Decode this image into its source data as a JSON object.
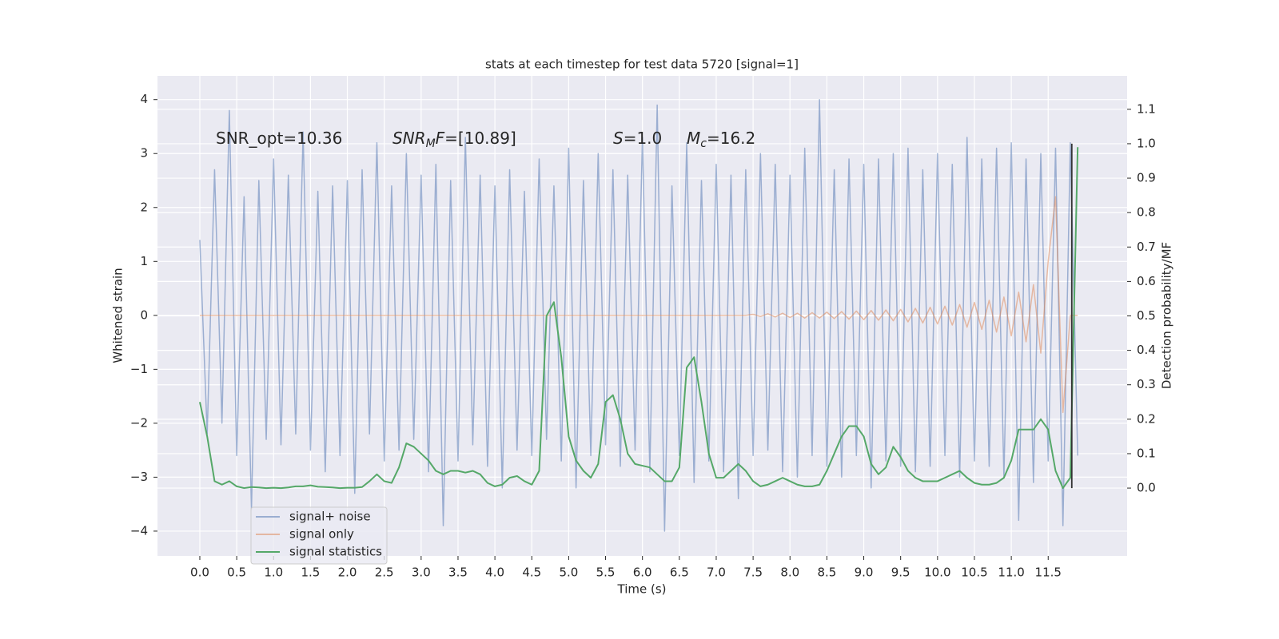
{
  "chart_data": {
    "type": "line",
    "title": "stats at each timestep for test data 5720 [signal=1]",
    "xlabel": "Time (s)",
    "ylabel": "Whitened strain",
    "y2label": "Detection probability/MF",
    "x": [
      0,
      0.1,
      0.2,
      0.3,
      0.4,
      0.5,
      0.6,
      0.7,
      0.8,
      0.9,
      1,
      1.1,
      1.2,
      1.3,
      1.4,
      1.5,
      1.6,
      1.7,
      1.8,
      1.9,
      2,
      2.1,
      2.2,
      2.3,
      2.4,
      2.5,
      2.6,
      2.7,
      2.8,
      2.9,
      3,
      3.1,
      3.2,
      3.3,
      3.4,
      3.5,
      3.6,
      3.7,
      3.8,
      3.9,
      4,
      4.1,
      4.2,
      4.3,
      4.4,
      4.5,
      4.6,
      4.7,
      4.8,
      4.9,
      5,
      5.1,
      5.2,
      5.3,
      5.4,
      5.5,
      5.6,
      5.7,
      5.8,
      5.9,
      6,
      6.1,
      6.2,
      6.3,
      6.4,
      6.5,
      6.6,
      6.7,
      6.8,
      6.9,
      7,
      7.1,
      7.2,
      7.3,
      7.4,
      7.5,
      7.6,
      7.7,
      7.8,
      7.9,
      8,
      8.1,
      8.2,
      8.3,
      8.4,
      8.5,
      8.6,
      8.7,
      8.8,
      8.9,
      9,
      9.1,
      9.2,
      9.3,
      9.4,
      9.5,
      9.6,
      9.7,
      9.8,
      9.9,
      10,
      10.1,
      10.2,
      10.3,
      10.4,
      10.5,
      10.6,
      10.7,
      10.8,
      10.9,
      11,
      11.1,
      11.2,
      11.3,
      11.4,
      11.5,
      11.6,
      11.7,
      11.8,
      11.9
    ],
    "series": [
      {
        "name": "signal+ noise",
        "color": "#4c72b0",
        "opacity": 0.5,
        "axis": "y",
        "values": [
          1.4,
          -2.2,
          2.7,
          -2.0,
          3.8,
          -2.6,
          2.2,
          -3.6,
          2.5,
          -2.3,
          2.9,
          -2.4,
          2.6,
          -2.2,
          3.4,
          -2.5,
          2.3,
          -2.9,
          2.4,
          -2.6,
          2.5,
          -3.3,
          2.7,
          -2.2,
          3.2,
          -2.7,
          2.4,
          -2.5,
          3.0,
          -2.3,
          2.6,
          -2.9,
          2.8,
          -3.9,
          2.5,
          -2.7,
          3.3,
          -2.4,
          2.6,
          -2.8,
          2.4,
          -3.2,
          2.7,
          -2.5,
          2.3,
          -2.6,
          2.9,
          -2.3,
          2.4,
          -2.7,
          3.1,
          -3.2,
          2.5,
          -2.6,
          3.0,
          -2.4,
          2.7,
          -2.8,
          2.6,
          -2.5,
          3.3,
          -2.9,
          3.9,
          -4.0,
          2.4,
          -2.6,
          3.2,
          -3.1,
          2.5,
          -2.7,
          2.8,
          -2.9,
          2.6,
          -3.4,
          2.7,
          -2.6,
          3.0,
          -2.5,
          2.8,
          -2.9,
          2.6,
          -3.0,
          3.1,
          -2.6,
          4.0,
          -2.8,
          2.7,
          -3.0,
          2.9,
          -2.6,
          2.8,
          -3.2,
          2.9,
          -2.7,
          3.0,
          -2.8,
          3.1,
          -2.9,
          2.7,
          -2.8,
          3.0,
          -2.6,
          2.8,
          -3.0,
          3.3,
          -2.7,
          2.9,
          -2.8,
          3.1,
          -3.0,
          3.2,
          -3.8,
          2.9,
          -3.1,
          3.0,
          -2.7,
          3.1,
          -3.9,
          3.2,
          -2.6
        ]
      },
      {
        "name": "signal only",
        "color": "#dd8452",
        "opacity": 0.5,
        "axis": "y",
        "values": [
          0,
          0,
          0,
          0,
          0,
          0,
          0,
          0,
          0,
          0,
          0,
          0,
          0,
          0,
          0,
          0,
          0,
          0,
          0,
          0,
          0,
          0,
          0,
          0,
          0,
          0,
          0,
          0,
          0,
          0,
          0,
          0,
          0,
          0,
          0,
          0,
          0,
          0,
          0,
          0,
          0,
          0,
          0,
          0,
          0,
          0,
          0,
          0,
          0,
          0,
          0,
          0,
          0,
          0,
          0,
          0,
          0,
          0,
          0,
          0,
          0,
          0,
          0,
          0,
          0,
          0,
          0,
          0,
          0,
          0,
          0,
          0,
          0,
          0,
          0,
          0.02,
          -0.02,
          0.03,
          -0.03,
          0.04,
          -0.04,
          0.04,
          -0.05,
          0.05,
          -0.05,
          0.06,
          -0.06,
          0.07,
          -0.07,
          0.08,
          -0.08,
          0.09,
          -0.09,
          0.1,
          -0.1,
          0.11,
          -0.12,
          0.13,
          -0.14,
          0.15,
          -0.16,
          0.17,
          -0.18,
          0.2,
          -0.22,
          0.24,
          -0.26,
          0.28,
          -0.31,
          0.34,
          -0.38,
          0.43,
          -0.49,
          0.57,
          -0.7,
          1.0,
          2.2,
          -1.8,
          0,
          0
        ]
      },
      {
        "name": "signal statistics",
        "color": "#55a868",
        "opacity": 1,
        "axis": "y2",
        "values": [
          0.25,
          0.15,
          0.02,
          0.01,
          0.02,
          0.005,
          0.0,
          0.003,
          0.002,
          0.0,
          0.001,
          0.0,
          0.002,
          0.005,
          0.005,
          0.008,
          0.004,
          0.003,
          0.002,
          0.0,
          0.001,
          0.001,
          0.003,
          0.02,
          0.04,
          0.02,
          0.015,
          0.06,
          0.13,
          0.12,
          0.1,
          0.08,
          0.05,
          0.04,
          0.05,
          0.05,
          0.045,
          0.05,
          0.04,
          0.015,
          0.005,
          0.01,
          0.03,
          0.035,
          0.02,
          0.01,
          0.05,
          0.5,
          0.54,
          0.38,
          0.15,
          0.08,
          0.05,
          0.03,
          0.07,
          0.25,
          0.27,
          0.2,
          0.1,
          0.07,
          0.065,
          0.06,
          0.04,
          0.02,
          0.02,
          0.06,
          0.35,
          0.38,
          0.25,
          0.1,
          0.03,
          0.03,
          0.05,
          0.07,
          0.05,
          0.02,
          0.005,
          0.01,
          0.02,
          0.03,
          0.02,
          0.01,
          0.005,
          0.005,
          0.01,
          0.05,
          0.1,
          0.15,
          0.18,
          0.18,
          0.15,
          0.07,
          0.04,
          0.06,
          0.12,
          0.09,
          0.05,
          0.03,
          0.02,
          0.02,
          0.02,
          0.03,
          0.04,
          0.05,
          0.03,
          0.015,
          0.01,
          0.01,
          0.015,
          0.03,
          0.08,
          0.17,
          0.17,
          0.17,
          0.2,
          0.17,
          0.05,
          0.0,
          0.03,
          0.99
        ]
      }
    ],
    "vline": {
      "x": 11.82,
      "ymin": 0,
      "ymax": 1.0,
      "color": "#333333",
      "axis": "y2"
    },
    "xlim": [
      -0.574,
      12.57
    ],
    "xticks": [
      {
        "value": 0,
        "label": "0.0"
      },
      0.5,
      {
        "value": 1,
        "label": "1.0"
      },
      1.5,
      {
        "value": 2,
        "label": "2.0"
      },
      2.5,
      {
        "value": 3,
        "label": "3.0"
      },
      3.5,
      {
        "value": 4,
        "label": "4.0"
      },
      4.5,
      {
        "value": 5,
        "label": "5.0"
      },
      5.5,
      {
        "value": 6,
        "label": "6.0"
      },
      6.5,
      {
        "value": 7,
        "label": "7.0"
      },
      7.5,
      {
        "value": 8,
        "label": "8.0"
      },
      8.5,
      {
        "value": 9,
        "label": "9.0"
      },
      9.5,
      {
        "value": 10,
        "label": "10.0"
      },
      10.5,
      {
        "value": 11,
        "label": "11.0"
      },
      11.5
    ],
    "ylim": [
      -4.46,
      4.44
    ],
    "yticks": [
      {
        "value": -4,
        "label": "−4"
      },
      {
        "value": -3,
        "label": "−3"
      },
      {
        "value": -2,
        "label": "−2"
      },
      {
        "value": -1,
        "label": "−1"
      },
      0,
      1,
      2,
      3,
      4
    ],
    "y2lim": [
      -0.197,
      1.197
    ],
    "y2ticks": [
      {
        "value": 0,
        "label": "0.0"
      },
      0.1,
      0.2,
      0.3,
      0.4,
      0.5,
      0.6,
      0.7,
      0.8,
      0.9,
      {
        "value": 1,
        "label": "1.0"
      },
      1.1
    ],
    "grid": true,
    "legend": "lower left",
    "annotations": [
      {
        "segments": [
          {
            "text": "SNR_opt=10.36",
            "italic": false,
            "sub": false
          }
        ]
      },
      {
        "segments": [
          {
            "text": "SNR",
            "italic": true,
            "sub": false
          },
          {
            "text": "M",
            "italic": true,
            "sub": true
          },
          {
            "text": "F",
            "italic": true,
            "sub": false
          },
          {
            "text": "=[10.89]",
            "italic": false,
            "sub": false
          }
        ]
      },
      {
        "segments": [
          {
            "text": "S",
            "italic": true,
            "sub": false
          },
          {
            "text": "=1.0",
            "italic": false,
            "sub": false
          }
        ]
      },
      {
        "segments": [
          {
            "text": "M",
            "italic": true,
            "sub": false
          },
          {
            "text": "c",
            "italic": true,
            "sub": true
          },
          {
            "text": "=16.2",
            "italic": false,
            "sub": false
          }
        ]
      }
    ]
  }
}
